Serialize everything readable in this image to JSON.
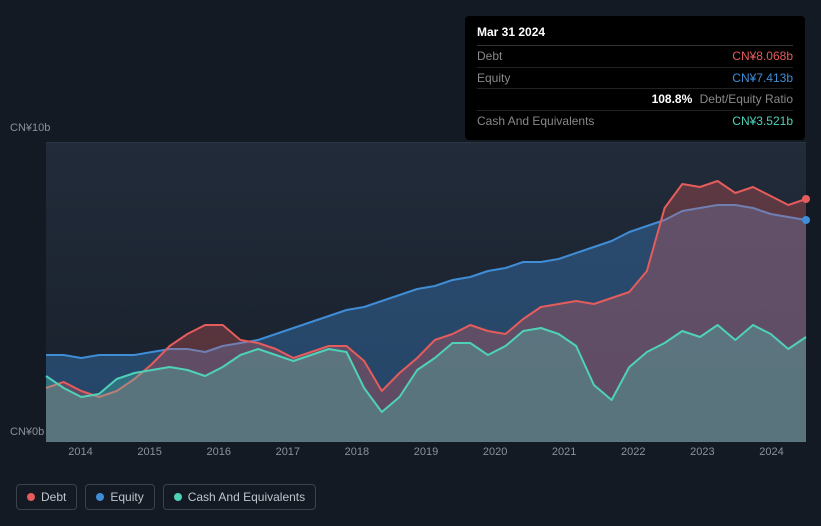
{
  "tooltip": {
    "date": "Mar 31 2024",
    "rows": {
      "debt": {
        "label": "Debt",
        "value": "CN¥8.068b",
        "color": "#e55c5c"
      },
      "equity": {
        "label": "Equity",
        "value": "CN¥7.413b",
        "color": "#3f8dd6"
      },
      "ratio": {
        "label": "",
        "pct": "108.8%",
        "suffix": "Debt/Equity Ratio"
      },
      "cash": {
        "label": "Cash And Equivalents",
        "value": "CN¥3.521b",
        "color": "#4fd1b8"
      }
    }
  },
  "chart": {
    "type": "area",
    "background_color": "#131a23",
    "plot_bg": "#1c2430",
    "y_axis": {
      "min": 0,
      "max": 10,
      "labels": [
        "CN¥0b",
        "CN¥10b"
      ]
    },
    "x_axis": {
      "labels": [
        "2014",
        "2015",
        "2016",
        "2017",
        "2018",
        "2019",
        "2020",
        "2021",
        "2022",
        "2023",
        "2024"
      ],
      "min_index": 0,
      "max_index": 10
    },
    "grid_color": "rgba(255,255,255,0.05)",
    "series": {
      "equity": {
        "color": "#3f8dd6",
        "fill_opacity": 0.35,
        "line_width": 2,
        "values": [
          2.9,
          2.9,
          2.8,
          2.9,
          2.9,
          2.9,
          3.0,
          3.1,
          3.1,
          3.0,
          3.2,
          3.3,
          3.4,
          3.6,
          3.8,
          4.0,
          4.2,
          4.4,
          4.5,
          4.7,
          4.9,
          5.1,
          5.2,
          5.4,
          5.5,
          5.7,
          5.8,
          6.0,
          6.0,
          6.1,
          6.3,
          6.5,
          6.7,
          7.0,
          7.2,
          7.4,
          7.7,
          7.8,
          7.9,
          7.9,
          7.8,
          7.6,
          7.5,
          7.4
        ],
        "end_dot_color": "#3f8dd6"
      },
      "debt": {
        "color": "#e55c5c",
        "fill_opacity": 0.3,
        "line_width": 2,
        "values": [
          1.8,
          2.0,
          1.7,
          1.5,
          1.7,
          2.1,
          2.6,
          3.2,
          3.6,
          3.9,
          3.9,
          3.4,
          3.3,
          3.1,
          2.8,
          3.0,
          3.2,
          3.2,
          2.7,
          1.7,
          2.3,
          2.8,
          3.4,
          3.6,
          3.9,
          3.7,
          3.6,
          4.1,
          4.5,
          4.6,
          4.7,
          4.6,
          4.8,
          5.0,
          5.7,
          7.8,
          8.6,
          8.5,
          8.7,
          8.3,
          8.5,
          8.2,
          7.9,
          8.1
        ],
        "end_dot_color": "#e55c5c"
      },
      "cash": {
        "color": "#4fd1b8",
        "fill_opacity": 0.3,
        "line_width": 2,
        "values": [
          2.2,
          1.8,
          1.5,
          1.6,
          2.1,
          2.3,
          2.4,
          2.5,
          2.4,
          2.2,
          2.5,
          2.9,
          3.1,
          2.9,
          2.7,
          2.9,
          3.1,
          3.0,
          1.8,
          1.0,
          1.5,
          2.4,
          2.8,
          3.3,
          3.3,
          2.9,
          3.2,
          3.7,
          3.8,
          3.6,
          3.2,
          1.9,
          1.4,
          2.5,
          3.0,
          3.3,
          3.7,
          3.5,
          3.9,
          3.4,
          3.9,
          3.6,
          3.1,
          3.5
        ],
        "end_dot_color": "#4fd1b8"
      }
    }
  },
  "legend": {
    "items": [
      {
        "label": "Debt",
        "color": "#e55c5c"
      },
      {
        "label": "Equity",
        "color": "#3f8dd6"
      },
      {
        "label": "Cash And Equivalents",
        "color": "#4fd1b8"
      }
    ]
  }
}
